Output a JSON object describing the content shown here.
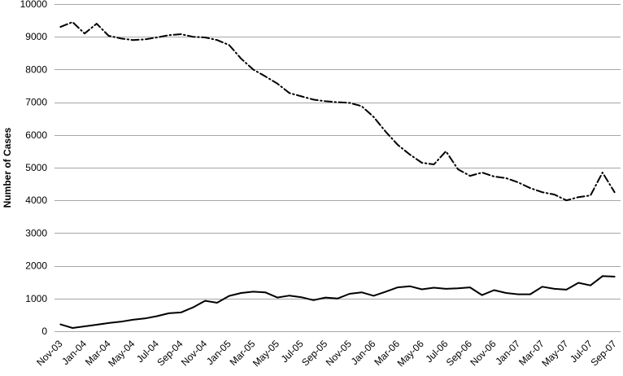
{
  "chart_data": {
    "type": "line",
    "title": "",
    "xlabel": "",
    "ylabel": "Number of Cases",
    "ylim": [
      0,
      10000
    ],
    "yticks": [
      0,
      1000,
      2000,
      3000,
      4000,
      5000,
      6000,
      7000,
      8000,
      9000,
      10000
    ],
    "grid": "horizontal",
    "legend": "none",
    "xtick_every": 2,
    "xtick_labels": [
      "Nov-03",
      "Jan-04",
      "Mar-04",
      "May-04",
      "Jul-04",
      "Sep-04",
      "Nov-04",
      "Jan-05",
      "Mar-05",
      "May-05",
      "Jul-05",
      "Sep-05",
      "Nov-05",
      "Jan-06",
      "Mar-06",
      "May-06",
      "Jul-06",
      "Sep-06",
      "Nov-06",
      "Jan-07",
      "Mar-07",
      "May-07",
      "Jul-07",
      "Sep-07"
    ],
    "x": [
      "Nov-03",
      "Dec-03",
      "Jan-04",
      "Feb-04",
      "Mar-04",
      "Apr-04",
      "May-04",
      "Jun-04",
      "Jul-04",
      "Aug-04",
      "Sep-04",
      "Oct-04",
      "Nov-04",
      "Dec-04",
      "Jan-05",
      "Feb-05",
      "Mar-05",
      "Apr-05",
      "May-05",
      "Jun-05",
      "Jul-05",
      "Aug-05",
      "Sep-05",
      "Oct-05",
      "Nov-05",
      "Dec-05",
      "Jan-06",
      "Feb-06",
      "Mar-06",
      "Apr-06",
      "May-06",
      "Jun-06",
      "Jul-06",
      "Aug-06",
      "Sep-06",
      "Oct-06",
      "Nov-06",
      "Dec-06",
      "Jan-07",
      "Feb-07",
      "Mar-07",
      "Apr-07",
      "May-07",
      "Jun-07",
      "Jul-07",
      "Aug-07",
      "Sep-07"
    ],
    "series": [
      {
        "name": "dash-dot line",
        "style": "dash-dot",
        "color": "#000000",
        "values": [
          9300,
          9450,
          9100,
          9400,
          9030,
          8950,
          8900,
          8920,
          8980,
          9050,
          9080,
          9000,
          8980,
          8900,
          8750,
          8330,
          8000,
          7790,
          7570,
          7280,
          7180,
          7080,
          7030,
          7000,
          6980,
          6880,
          6550,
          6100,
          5700,
          5400,
          5150,
          5100,
          5500,
          4950,
          4750,
          4850,
          4730,
          4680,
          4550,
          4375,
          4250,
          4180,
          4000,
          4100,
          4150,
          4850,
          4250
        ]
      },
      {
        "name": "solid line",
        "style": "solid",
        "color": "#000000",
        "values": [
          210,
          100,
          150,
          200,
          250,
          290,
          350,
          390,
          460,
          550,
          575,
          730,
          930,
          870,
          1080,
          1170,
          1210,
          1190,
          1030,
          1090,
          1040,
          950,
          1030,
          1000,
          1145,
          1190,
          1085,
          1210,
          1340,
          1375,
          1280,
          1330,
          1295,
          1310,
          1340,
          1105,
          1255,
          1170,
          1130,
          1130,
          1360,
          1295,
          1270,
          1480,
          1400,
          1685,
          1670
        ]
      }
    ],
    "colors": {
      "background": "#ffffff",
      "gridline": "#a6a6a6",
      "axis_text": "#000000",
      "line": "#000000"
    }
  }
}
